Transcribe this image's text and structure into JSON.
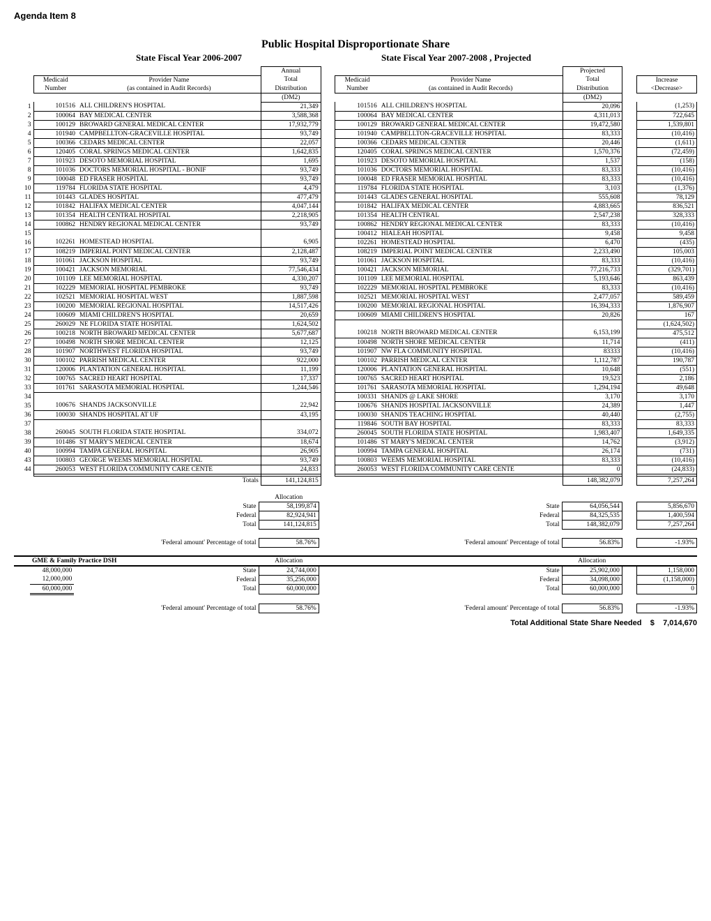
{
  "header": {
    "agenda": "Agenda Item 8",
    "title": "Public Hospital Disproportionate Share",
    "fiscal_left": "State Fiscal Year 2006-2007",
    "fiscal_right": "State Fiscal Year 2007-2008 , Projected"
  },
  "colheads": {
    "medicaid": "Medicaid",
    "number": "Number",
    "provider": "Provider Name",
    "contained": "(as contained in  Audit Records)",
    "annual": "Annual",
    "total": "Total",
    "distribution": "Distribution",
    "projected": "Projected",
    "increase": "Increase",
    "decrease": "<Decrease>",
    "dm2": "(DM2)"
  },
  "rows": [
    {
      "n": "1",
      "m1": "101516",
      "p1": "ALL CHILDREN'S HOSPITAL",
      "a1": "21,349",
      "m2": "101516",
      "p2": "ALL CHILDREN'S HOSPITAL",
      "a2": "20,096",
      "d": "(1,253)"
    },
    {
      "n": "2",
      "m1": "100064",
      "p1": "BAY MEDICAL CENTER",
      "a1": "3,588,368",
      "m2": "100064",
      "p2": "BAY MEDICAL CENTER",
      "a2": "4,311,013",
      "d": "722,645"
    },
    {
      "n": "3",
      "m1": "100129",
      "p1": "BROWARD GENERAL MEDICAL CENTER",
      "a1": "17,932,779",
      "m2": "100129",
      "p2": "BROWARD GENERAL MEDICAL CENTER",
      "a2": "19,472,580",
      "d": "1,539,801"
    },
    {
      "n": "4",
      "m1": "101940",
      "p1": "CAMPBELLTON-GRACEVILLE HOSPITAL",
      "a1": "93,749",
      "m2": "101940",
      "p2": "CAMPBELLTON-GRACEVILLE HOSPITAL",
      "a2": "83,333",
      "d": "(10,416)"
    },
    {
      "n": "5",
      "m1": "100366",
      "p1": "CEDARS MEDICAL CENTER",
      "a1": "22,057",
      "m2": "100366",
      "p2": "CEDARS MEDICAL CENTER",
      "a2": "20,446",
      "d": "(1,611)"
    },
    {
      "n": "6",
      "m1": "120405",
      "p1": "CORAL SPRINGS MEDICAL CENTER",
      "a1": "1,642,835",
      "m2": "120405",
      "p2": "CORAL SPRINGS MEDICAL CENTER",
      "a2": "1,570,376",
      "d": "(72,459)"
    },
    {
      "n": "7",
      "m1": "101923",
      "p1": "DESOTO MEMORIAL HOSPITAL",
      "a1": "1,695",
      "m2": "101923",
      "p2": "DESOTO MEMORIAL HOSPITAL",
      "a2": "1,537",
      "d": "(158)"
    },
    {
      "n": "8",
      "m1": "101036",
      "p1": "DOCTORS MEMORIAL HOSPITAL - BONIF",
      "a1": "93,749",
      "m2": "101036",
      "p2": "DOCTORS MEMORIAL HOSPITAL",
      "a2": "83,333",
      "d": "(10,416)"
    },
    {
      "n": "9",
      "m1": "100048",
      "p1": "ED FRASER HOSPITAL",
      "a1": "93,749",
      "m2": "100048",
      "p2": "ED FRASER MEMORIAL HOSPITAL",
      "a2": "83,333",
      "d": "(10,416)"
    },
    {
      "n": "10",
      "m1": "119784",
      "p1": "FLORIDA STATE HOSPITAL",
      "a1": "4,479",
      "m2": "119784",
      "p2": "FLORIDA STATE HOSPITAL",
      "a2": "3,103",
      "d": "(1,376)"
    },
    {
      "n": "11",
      "m1": "101443",
      "p1": "GLADES HOSPITAL",
      "a1": "477,479",
      "m2": "101443",
      "p2": "GLADES GENERAL HOSPITAL",
      "a2": "555,608",
      "d": "78,129"
    },
    {
      "n": "12",
      "m1": "101842",
      "p1": "HALIFAX MEDICAL CENTER",
      "a1": "4,047,144",
      "m2": "101842",
      "p2": "HALIFAX MEDICAL CENTER",
      "a2": "4,883,665",
      "d": "836,521"
    },
    {
      "n": "13",
      "m1": "101354",
      "p1": "HEALTH CENTRAL HOSPITAL",
      "a1": "2,218,905",
      "m2": "101354",
      "p2": "HEALTH CENTRAL",
      "a2": "2,547,238",
      "d": "328,333"
    },
    {
      "n": "14",
      "m1": "100862",
      "p1": "HENDRY REGIONAL MEDICAL CENTER",
      "a1": "93,749",
      "m2": "100862",
      "p2": "HENDRY REGIONAL MEDICAL CENTER",
      "a2": "83,333",
      "d": "(10,416)"
    },
    {
      "n": "15",
      "m1": "",
      "p1": "",
      "a1": "",
      "m2": "100412",
      "p2": "HIALEAH HOSPITAL",
      "a2": "9,458",
      "d": "9,458"
    },
    {
      "n": "16",
      "m1": "102261",
      "p1": "HOMESTEAD HOSPITAL",
      "a1": "6,905",
      "m2": "102261",
      "p2": "HOMESTEAD HOSPITAL",
      "a2": "6,470",
      "d": "(435)"
    },
    {
      "n": "17",
      "m1": "108219",
      "p1": "IMPERIAL POINT MEDICAL CENTER",
      "a1": "2,128,487",
      "m2": "108219",
      "p2": "IMPERIAL POINT MEDICAL CENTER",
      "a2": "2,233,490",
      "d": "105,003"
    },
    {
      "n": "18",
      "m1": "101061",
      "p1": "JACKSON HOSPITAL",
      "a1": "93,749",
      "m2": "101061",
      "p2": "JACKSON HOSPITAL",
      "a2": "83,333",
      "d": "(10,416)"
    },
    {
      "n": "19",
      "m1": "100421",
      "p1": "JACKSON MEMORIAL",
      "a1": "77,546,434",
      "m2": "100421",
      "p2": "JACKSON MEMORIAL",
      "a2": "77,216,733",
      "d": "(329,701)"
    },
    {
      "n": "20",
      "m1": "101109",
      "p1": "LEE MEMORIAL HOSPITAL",
      "a1": "4,330,207",
      "m2": "101109",
      "p2": "LEE MEMORIAL HOSPITAL",
      "a2": "5,193,646",
      "d": "863,439"
    },
    {
      "n": "21",
      "m1": "102229",
      "p1": "MEMORIAL HOSPITAL PEMBROKE",
      "a1": "93,749",
      "m2": "102229",
      "p2": "MEMORIAL HOSPITAL PEMBROKE",
      "a2": "83,333",
      "d": "(10,416)"
    },
    {
      "n": "22",
      "m1": "102521",
      "p1": "MEMORIAL HOSPITAL WEST",
      "a1": "1,887,598",
      "m2": "102521",
      "p2": "MEMORIAL HOSPITAL WEST",
      "a2": "2,477,057",
      "d": "589,459"
    },
    {
      "n": "23",
      "m1": "100200",
      "p1": "MEMORIAL REGIONAL HOSPITAL",
      "a1": "14,517,426",
      "m2": "100200",
      "p2": "MEMORIAL REGIONAL HOSPITAL",
      "a2": "16,394,333",
      "d": "1,876,907"
    },
    {
      "n": "24",
      "m1": "100609",
      "p1": "MIAMI CHILDREN'S HOSPITAL",
      "a1": "20,659",
      "m2": "100609",
      "p2": "MIAMI CHILDREN'S HOSPITAL",
      "a2": "20,826",
      "d": "167"
    },
    {
      "n": "25",
      "m1": "260029",
      "p1": "NE FLORIDA STATE HOSPITAL",
      "a1": "1,624,502",
      "m2": "",
      "p2": "",
      "a2": "",
      "d": "(1,624,502)"
    },
    {
      "n": "26",
      "m1": "100218",
      "p1": "NORTH BROWARD MEDICAL CENTER",
      "a1": "5,677,687",
      "m2": "100218",
      "p2": "NORTH BROWARD MEDICAL CENTER",
      "a2": "6,153,199",
      "d": "475,512"
    },
    {
      "n": "27",
      "m1": "100498",
      "p1": "NORTH SHORE MEDICAL CENTER",
      "a1": "12,125",
      "m2": "100498",
      "p2": "NORTH SHORE MEDICAL CENTER",
      "a2": "11,714",
      "d": "(411)"
    },
    {
      "n": "28",
      "m1": "101907",
      "p1": "NORTHWEST FLORIDA HOSPITAL",
      "a1": "93,749",
      "m2": "101907",
      "p2": "NW FLA COMMUNITY HOSPITAL",
      "a2": "83333",
      "d": "(10,416)"
    },
    {
      "n": "30",
      "m1": "100102",
      "p1": "PARRISH MEDICAL CENTER",
      "a1": "922,000",
      "m2": "100102",
      "p2": "PARRISH MEDICAL CENTER",
      "a2": "1,112,787",
      "d": "190,787"
    },
    {
      "n": "31",
      "m1": "120006",
      "p1": "PLANTATION GENERAL HOSPITAL",
      "a1": "11,199",
      "m2": "120006",
      "p2": "PLANTATION GENERAL HOSPITAL",
      "a2": "10,648",
      "d": "(551)"
    },
    {
      "n": "32",
      "m1": "100765",
      "p1": "SACRED HEART HOSPITAL",
      "a1": "17,337",
      "m2": "100765",
      "p2": "SACRED HEART HOSPITAL",
      "a2": "19,523",
      "d": "2,186"
    },
    {
      "n": "33",
      "m1": "101761",
      "p1": "SARASOTA MEMORIAL HOSPITAL",
      "a1": "1,244,546",
      "m2": "101761",
      "p2": "SARASOTA MEMORIAL HOSPITAL",
      "a2": "1,294,194",
      "d": "49,648"
    },
    {
      "n": "34",
      "m1": "",
      "p1": "",
      "a1": "",
      "m2": "100331",
      "p2": "SHANDS @ LAKE SHORE",
      "a2": "3,170",
      "d": "3,170"
    },
    {
      "n": "35",
      "m1": "100676",
      "p1": "SHANDS JACKSONVILLE",
      "a1": "22,942",
      "m2": "100676",
      "p2": "SHANDS HOSPITAL JACKSONVILLE",
      "a2": "24,389",
      "d": "1,447"
    },
    {
      "n": "36",
      "m1": "100030",
      "p1": "SHANDS HOSPITAL AT UF",
      "a1": "43,195",
      "m2": "100030",
      "p2": "SHANDS TEACHING HOSPITAL",
      "a2": "40,440",
      "d": "(2,755)"
    },
    {
      "n": "37",
      "m1": "",
      "p1": "",
      "a1": "",
      "m2": "119846",
      "p2": "SOUTH BAY HOSPITAL",
      "a2": "83,333",
      "d": "83,333"
    },
    {
      "n": "38",
      "m1": "260045",
      "p1": "SOUTH FLORIDA STATE HOSPITAL",
      "a1": "334,072",
      "m2": "260045",
      "p2": "SOUTH FLORIDA STATE HOSPITAL",
      "a2": "1,983,407",
      "d": "1,649,335"
    },
    {
      "n": "39",
      "m1": "101486",
      "p1": "ST MARY'S MEDICAL CENTER",
      "a1": "18,674",
      "m2": "101486",
      "p2": "ST MARY'S MEDICAL CENTER",
      "a2": "14,762",
      "d": "(3,912)"
    },
    {
      "n": "40",
      "m1": "100994",
      "p1": "TAMPA GENERAL HOSPITAL",
      "a1": "26,905",
      "m2": "100994",
      "p2": "TAMPA GENERAL HOSPITAL",
      "a2": "26,174",
      "d": "(731)"
    },
    {
      "n": "43",
      "m1": "100803",
      "p1": "GEORGE WEEMS MEMORIAL HOSPITAL",
      "a1": "93,749",
      "m2": "100803",
      "p2": "WEEMS MEMORIAL HOSPITAL",
      "a2": "83,333",
      "d": "(10,416)"
    },
    {
      "n": "44",
      "m1": "260053",
      "p1": "WEST FLORIDA COMMUNITY CARE CENTE",
      "a1": "24,833",
      "m2": "260053",
      "p2": "WEST FLORIDA COMMUNITY CARE CENTE",
      "a2": "0",
      "d": "(24,833)"
    }
  ],
  "totals": {
    "label": "Totals",
    "a1": "141,124,815",
    "a2": "148,382,079",
    "d": "7,257,264"
  },
  "alloc1": {
    "allocation": "Allocation",
    "state_lbl": "State",
    "state1": "58,199,874",
    "state2": "64,056,544",
    "state_d": "5,856,670",
    "federal_lbl": "Federal",
    "federal1": "82,924,941",
    "federal2": "84,325,535",
    "federal_d": "1,400,594",
    "total_lbl": "Total",
    "total1": "141,124,815",
    "total2": "148,382,079",
    "total_d": "7,257,264",
    "pct_lbl": "'Federal amount' Percentage of total",
    "pct1": "58.76%",
    "pct2": "56.83%",
    "pct_d": "-1.93%"
  },
  "gme": {
    "title": "GME & Family Practice DSH",
    "allocation": "Allocation",
    "c1": "48,000,000",
    "c2": "12,000,000",
    "c3": "60,000,000",
    "state_lbl": "State",
    "state1": "24,744,000",
    "state2": "25,902,000",
    "state_d": "1,158,000",
    "federal_lbl": "Federal",
    "federal1": "35,256,000",
    "federal2": "34,098,000",
    "federal_d": "(1,158,000)",
    "total_lbl": "Total",
    "total1": "60,000,000",
    "total2": "60,000,000",
    "total_d": "0",
    "pct_lbl": "'Federal amount' Percentage of total",
    "pct1": "58.76%",
    "pct2": "56.83%",
    "pct_d": "-1.93%"
  },
  "footer": {
    "label": "Total Additional State Share Needed",
    "sym": "$",
    "val": "7,014,670"
  }
}
